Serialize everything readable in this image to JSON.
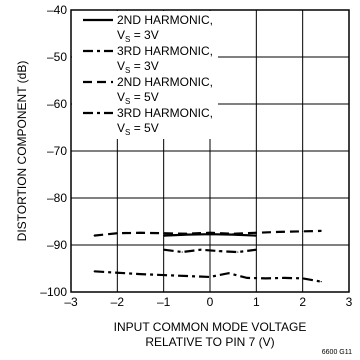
{
  "chart_data": {
    "type": "line",
    "xlabel_lines": [
      "INPUT COMMON MODE VOLTAGE",
      "RELATIVE TO PIN 7 (V)"
    ],
    "ylabel": "DISTORTION COMPONENT (dB)",
    "xlim": [
      -3,
      3
    ],
    "ylim": [
      -100,
      -40
    ],
    "xticks": [
      -3,
      -2,
      -1,
      0,
      1,
      2,
      3
    ],
    "yticks": [
      -40,
      -50,
      -60,
      -70,
      -80,
      -90,
      -100
    ],
    "xtick_labels": [
      "–3",
      "–2",
      "–1",
      "0",
      "1",
      "2",
      "3"
    ],
    "ytick_labels": [
      "–40",
      "–50",
      "–60",
      "–70",
      "–80",
      "–90",
      "–100"
    ],
    "grid": true,
    "legend_position": "top-left",
    "figure_id": "6600 G11",
    "series": [
      {
        "name": "2ND HARMONIC, VS = 3V",
        "legend_line1": "2ND HARMONIC,",
        "legend_main": "V",
        "legend_sub": "S",
        "legend_rest": " = 3V",
        "style": "solid",
        "x": [
          -1.0,
          -0.5,
          0.0,
          0.5,
          1.0
        ],
        "y": [
          -88.0,
          -87.8,
          -87.7,
          -87.8,
          -88.0
        ]
      },
      {
        "name": "3RD HARMONIC, VS = 3V",
        "legend_line1": "3RD HARMONIC,",
        "legend_main": "V",
        "legend_sub": "S",
        "legend_rest": " = 3V",
        "style": "dashdot",
        "x": [
          -1.0,
          -0.6,
          -0.2,
          0.2,
          0.6,
          1.0
        ],
        "y": [
          -91.0,
          -91.5,
          -91.0,
          -91.3,
          -91.5,
          -91.0
        ]
      },
      {
        "name": "2ND HARMONIC, VS = 5V",
        "legend_line1": "2ND HARMONIC,",
        "legend_main": "V",
        "legend_sub": "S",
        "legend_rest": " = 5V",
        "style": "dashed",
        "x": [
          -2.5,
          -2.0,
          -1.5,
          -1.0,
          -0.5,
          0.0,
          0.5,
          1.0,
          1.5,
          2.0,
          2.4
        ],
        "y": [
          -88.0,
          -87.5,
          -87.4,
          -87.5,
          -87.6,
          -87.4,
          -87.6,
          -87.4,
          -87.2,
          -87.1,
          -87.0
        ]
      },
      {
        "name": "3RD HARMONIC, VS = 5V",
        "legend_line1": "3RD HARMONIC,",
        "legend_main": "V",
        "legend_sub": "S",
        "legend_rest": " = 5V",
        "style": "dashdot",
        "x": [
          -2.5,
          -2.0,
          -1.5,
          -1.0,
          -0.5,
          0.0,
          0.4,
          0.8,
          1.2,
          1.6,
          2.0,
          2.4
        ],
        "y": [
          -95.6,
          -95.9,
          -96.2,
          -96.4,
          -96.6,
          -96.8,
          -96.0,
          -97.0,
          -97.1,
          -97.0,
          -97.1,
          -97.8
        ]
      }
    ]
  }
}
